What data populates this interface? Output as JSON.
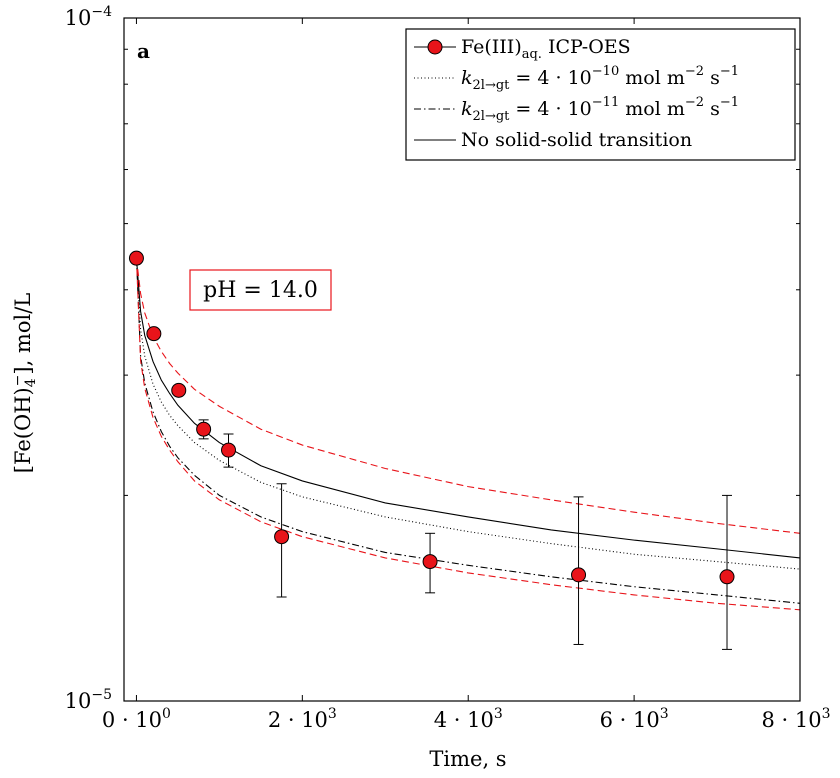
{
  "chart_data": {
    "type": "scatter",
    "panel_label": "a",
    "annotation": "pH = 14.0",
    "xlabel": "Time, s",
    "ylabel": "[Fe(OH)4⁻], mol/L",
    "xlim": [
      -150,
      8000
    ],
    "ylim": [
      1e-05,
      0.0001
    ],
    "y_scale": "log",
    "x_ticks": [
      {
        "value": 0,
        "mant": "0 · 10",
        "exp": "0"
      },
      {
        "value": 2000,
        "mant": "2 · 10",
        "exp": "3"
      },
      {
        "value": 4000,
        "mant": "4 · 10",
        "exp": "3"
      },
      {
        "value": 6000,
        "mant": "6 · 10",
        "exp": "3"
      },
      {
        "value": 8000,
        "mant": "8 · 10",
        "exp": "3"
      }
    ],
    "y_ticks": [
      {
        "value": 1e-05,
        "mant": "10",
        "exp": "−5"
      },
      {
        "value": 0.0001,
        "mant": "10",
        "exp": "−4"
      }
    ],
    "y_minor_ticks": [
      2e-05,
      3e-05,
      4e-05,
      5e-05,
      6e-05,
      7e-05,
      8e-05,
      9e-05
    ],
    "legend": [
      {
        "key": "data",
        "text": "Fe(III)",
        "sub": "aq.",
        "tail": " ICP-OES"
      },
      {
        "key": "k10",
        "text": "k",
        "sub": "2l→gt",
        "tail": " = 4 · 10",
        "sup": "−10",
        "unit": " mol m",
        "unit_sup1": "−2",
        "unit_mid": " s",
        "unit_sup2": "−1"
      },
      {
        "key": "k11",
        "text": "k",
        "sub": "2l→gt",
        "tail": " = 4 · 10",
        "sup": "−11",
        "unit": " mol m",
        "unit_sup1": "−2",
        "unit_mid": " s",
        "unit_sup2": "−1"
      },
      {
        "key": "none",
        "text": "No solid-solid transition"
      }
    ],
    "data_points": [
      {
        "x": 0,
        "y": 4.45e-05,
        "err_lo": null,
        "err_hi": null
      },
      {
        "x": 210,
        "y": 3.45e-05,
        "err_lo": null,
        "err_hi": null
      },
      {
        "x": 510,
        "y": 2.85e-05,
        "err_lo": null,
        "err_hi": null
      },
      {
        "x": 810,
        "y": 2.5e-05,
        "err_lo": 2.42e-05,
        "err_hi": 2.58e-05
      },
      {
        "x": 1110,
        "y": 2.33e-05,
        "err_lo": 2.2e-05,
        "err_hi": 2.46e-05
      },
      {
        "x": 1750,
        "y": 1.74e-05,
        "err_lo": 1.42e-05,
        "err_hi": 2.08e-05
      },
      {
        "x": 3540,
        "y": 1.6e-05,
        "err_lo": 1.44e-05,
        "err_hi": 1.76e-05
      },
      {
        "x": 5330,
        "y": 1.53e-05,
        "err_lo": 1.21e-05,
        "err_hi": 1.99e-05
      },
      {
        "x": 7120,
        "y": 1.52e-05,
        "err_lo": 1.19e-05,
        "err_hi": 2e-05
      }
    ],
    "series": [
      {
        "key": "none",
        "style": "solid",
        "color": "#000000",
        "x": [
          0,
          50,
          100,
          200,
          300,
          400,
          500,
          700,
          1000,
          1500,
          2000,
          3000,
          4000,
          5000,
          6000,
          7000,
          8000
        ],
        "y": [
          4.45e-05,
          3.72e-05,
          3.43e-05,
          3.14e-05,
          2.95e-05,
          2.82e-05,
          2.71e-05,
          2.55e-05,
          2.39e-05,
          2.21e-05,
          2.1e-05,
          1.95e-05,
          1.86e-05,
          1.78e-05,
          1.72e-05,
          1.67e-05,
          1.62e-05
        ]
      },
      {
        "key": "k10",
        "style": "dotted",
        "color": "#000000",
        "x": [
          0,
          50,
          100,
          200,
          300,
          400,
          500,
          700,
          1000,
          1500,
          2000,
          3000,
          4000,
          5000,
          6000,
          7000,
          8000
        ],
        "y": [
          4.45e-05,
          3.5e-05,
          3.2e-05,
          2.91e-05,
          2.74e-05,
          2.62e-05,
          2.53e-05,
          2.39e-05,
          2.25e-05,
          2.09e-05,
          1.99e-05,
          1.86e-05,
          1.77e-05,
          1.7e-05,
          1.64e-05,
          1.6e-05,
          1.56e-05
        ]
      },
      {
        "key": "k11",
        "style": "dashdot",
        "color": "#000000",
        "x": [
          0,
          50,
          100,
          200,
          300,
          400,
          500,
          700,
          1000,
          1500,
          2000,
          3000,
          4000,
          5000,
          6000,
          7000,
          8000
        ],
        "y": [
          4.45e-05,
          3.2e-05,
          2.92e-05,
          2.65e-05,
          2.48e-05,
          2.36e-05,
          2.27e-05,
          2.14e-05,
          2e-05,
          1.86e-05,
          1.77e-05,
          1.65e-05,
          1.58e-05,
          1.52e-05,
          1.47e-05,
          1.43e-05,
          1.39e-05
        ]
      },
      {
        "key": "band_upper",
        "style": "dashed",
        "color": "#e8141a",
        "x": [
          0,
          50,
          100,
          200,
          300,
          400,
          500,
          700,
          1000,
          1500,
          2000,
          3000,
          4000,
          5000,
          6000,
          7000,
          8000
        ],
        "y": [
          4.45e-05,
          3.95e-05,
          3.7e-05,
          3.42e-05,
          3.25e-05,
          3.12e-05,
          3.02e-05,
          2.86e-05,
          2.7e-05,
          2.5e-05,
          2.37e-05,
          2.19e-05,
          2.06e-05,
          1.97e-05,
          1.89e-05,
          1.82e-05,
          1.76e-05
        ]
      },
      {
        "key": "band_lower",
        "style": "dashed",
        "color": "#e8141a",
        "x": [
          0,
          50,
          100,
          200,
          300,
          400,
          500,
          700,
          1000,
          1500,
          2000,
          3000,
          4000,
          5000,
          6000,
          7000,
          8000
        ],
        "y": [
          4.45e-05,
          3.15e-05,
          2.87e-05,
          2.6e-05,
          2.44e-05,
          2.33e-05,
          2.24e-05,
          2.1e-05,
          1.97e-05,
          1.83e-05,
          1.74e-05,
          1.62e-05,
          1.54e-05,
          1.48e-05,
          1.43e-05,
          1.39e-05,
          1.36e-05
        ]
      }
    ],
    "colors": {
      "marker_fill": "#e8141a",
      "annotation_border": "#e8141a",
      "axis": "#000000"
    }
  }
}
